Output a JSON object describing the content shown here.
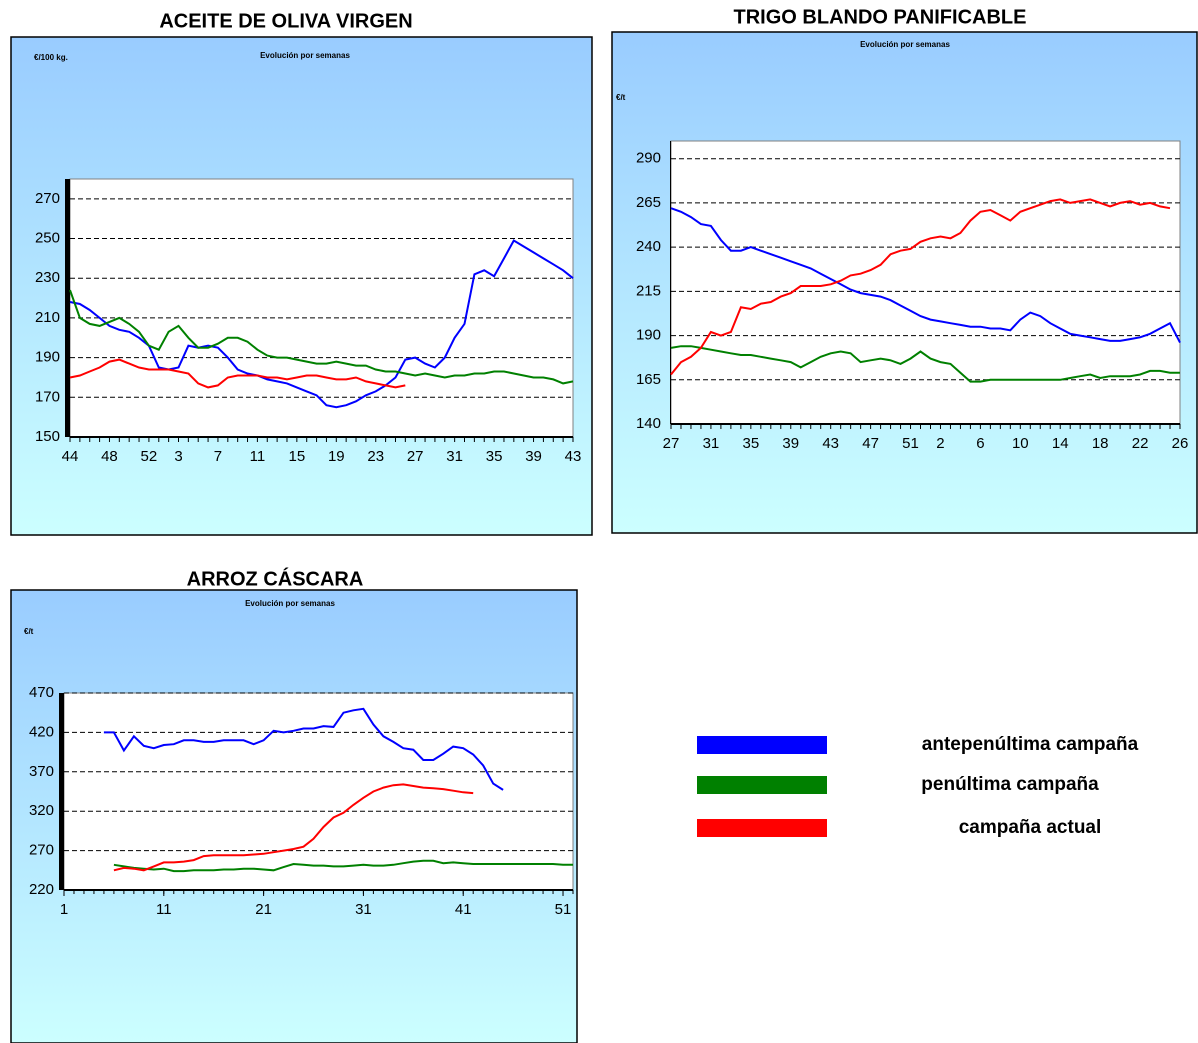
{
  "chart_data": [
    {
      "type": "line",
      "title": "ACEITE DE OLIVA VIRGEN",
      "subtitle": "Evolución por semanas",
      "y_label": "€/100 kg.",
      "categories": [
        "44",
        null,
        null,
        null,
        "48",
        null,
        null,
        null,
        "52",
        null,
        null,
        "3",
        null,
        null,
        null,
        "7",
        null,
        null,
        null,
        "11",
        null,
        null,
        null,
        "15",
        null,
        null,
        null,
        "19",
        null,
        null,
        null,
        "23",
        null,
        null,
        null,
        "27",
        null,
        null,
        null,
        "31",
        null,
        null,
        null,
        "35",
        null,
        null,
        null,
        "39",
        null,
        null,
        null,
        "43"
      ],
      "ylim": [
        150,
        280
      ],
      "yticks": [
        150,
        170,
        190,
        210,
        230,
        250,
        270
      ],
      "grid": true,
      "series": [
        {
          "color": "#0000ff",
          "values": [
            218,
            217,
            214,
            210,
            206,
            204,
            203,
            200,
            196,
            185,
            184,
            185,
            196,
            195,
            196,
            195,
            190,
            184,
            182,
            181,
            179,
            178,
            177,
            175,
            173,
            171,
            166,
            165,
            166,
            168,
            171,
            173,
            176,
            180,
            189,
            190,
            187,
            185,
            190,
            200,
            207,
            232,
            234,
            231,
            240,
            249,
            246,
            243,
            240,
            237,
            234,
            230
          ]
        },
        {
          "color": "#008000",
          "values": [
            224,
            210,
            207,
            206,
            208,
            210,
            207,
            203,
            196,
            194,
            203,
            206,
            200,
            195,
            195,
            197,
            200,
            200,
            198,
            194,
            191,
            190,
            190,
            189,
            188,
            187,
            187,
            188,
            187,
            186,
            186,
            184,
            183,
            183,
            182,
            181,
            182,
            181,
            180,
            181,
            181,
            182,
            182,
            183,
            183,
            182,
            181,
            180,
            180,
            179,
            177,
            178
          ]
        },
        {
          "color": "#ff0000",
          "values": [
            180,
            181,
            183,
            185,
            188,
            189,
            187,
            185,
            184,
            184,
            184,
            183,
            182,
            177,
            175,
            176,
            180,
            181,
            181,
            181,
            180,
            180,
            179,
            180,
            181,
            181,
            180,
            179,
            179,
            180,
            178,
            177,
            176,
            175,
            176,
            null,
            null,
            null,
            null,
            null,
            null,
            null,
            null,
            null,
            null,
            null,
            null,
            null,
            null,
            null,
            null,
            null
          ]
        }
      ]
    },
    {
      "type": "line",
      "title": "TRIGO BLANDO PANIFICABLE",
      "subtitle": "Evolución por semanas",
      "y_label": "€/t",
      "categories": [
        "27",
        null,
        null,
        null,
        "31",
        null,
        null,
        null,
        "35",
        null,
        null,
        null,
        "39",
        null,
        null,
        null,
        "43",
        null,
        null,
        null,
        "47",
        null,
        null,
        null,
        "51",
        null,
        null,
        "2",
        null,
        null,
        null,
        "6",
        null,
        null,
        null,
        "10",
        null,
        null,
        null,
        "14",
        null,
        null,
        null,
        "18",
        null,
        null,
        null,
        "22",
        null,
        null,
        null,
        "26"
      ],
      "ylim": [
        140,
        300
      ],
      "yticks": [
        140,
        165,
        190,
        215,
        240,
        265,
        290
      ],
      "grid": true,
      "series": [
        {
          "color": "#0000ff",
          "values": [
            262,
            260,
            257,
            253,
            252,
            244,
            238,
            238,
            240,
            238,
            236,
            234,
            232,
            230,
            228,
            225,
            222,
            219,
            216,
            214,
            213,
            212,
            210,
            207,
            204,
            201,
            199,
            198,
            197,
            196,
            195,
            195,
            194,
            194,
            193,
            199,
            203,
            201,
            197,
            194,
            191,
            190,
            189,
            188,
            187,
            187,
            188,
            189,
            191,
            194,
            197,
            186
          ]
        },
        {
          "color": "#008000",
          "values": [
            183,
            184,
            184,
            183,
            182,
            181,
            180,
            179,
            179,
            178,
            177,
            176,
            175,
            172,
            175,
            178,
            180,
            181,
            180,
            175,
            176,
            177,
            176,
            174,
            177,
            181,
            177,
            175,
            174,
            169,
            164,
            164,
            165,
            165,
            165,
            165,
            165,
            165,
            165,
            165,
            166,
            167,
            168,
            166,
            167,
            167,
            167,
            168,
            170,
            170,
            169,
            169
          ]
        },
        {
          "color": "#ff0000",
          "values": [
            168,
            175,
            178,
            183,
            192,
            190,
            192,
            206,
            205,
            208,
            209,
            212,
            214,
            218,
            218,
            218,
            219,
            221,
            224,
            225,
            227,
            230,
            236,
            238,
            239,
            243,
            245,
            246,
            245,
            248,
            255,
            260,
            261,
            258,
            255,
            260,
            262,
            264,
            266,
            267,
            265,
            266,
            267,
            265,
            263,
            265,
            266,
            264,
            265,
            263,
            262,
            null
          ]
        }
      ]
    },
    {
      "type": "line",
      "title": "ARROZ CÁSCARA",
      "subtitle": "Evolución por semanas",
      "y_label": "€/t",
      "x": [
        1,
        2,
        3,
        4,
        5,
        6,
        7,
        8,
        9,
        10,
        11,
        12,
        13,
        14,
        15,
        16,
        17,
        18,
        19,
        20,
        21,
        22,
        23,
        24,
        25,
        26,
        27,
        28,
        29,
        30,
        31,
        32,
        33,
        34,
        35,
        36,
        37,
        38,
        39,
        40,
        41,
        42,
        43,
        44,
        45,
        46,
        47,
        48,
        49,
        50,
        51,
        52
      ],
      "xlim": [
        1,
        52
      ],
      "xticks": [
        1,
        11,
        21,
        31,
        41,
        51
      ],
      "ylim": [
        220,
        470
      ],
      "yticks": [
        220,
        270,
        320,
        370,
        420,
        470
      ],
      "grid": true,
      "series": [
        {
          "color": "#0000ff",
          "values": [
            null,
            null,
            null,
            null,
            420,
            420,
            397,
            415,
            403,
            400,
            404,
            405,
            410,
            410,
            408,
            408,
            410,
            410,
            410,
            405,
            410,
            422,
            420,
            422,
            425,
            425,
            428,
            427,
            445,
            448,
            450,
            430,
            415,
            408,
            400,
            398,
            385,
            385,
            393,
            402,
            400,
            392,
            378,
            355,
            347,
            null,
            null,
            null,
            null,
            null,
            null,
            null
          ]
        },
        {
          "color": "#008000",
          "values": [
            null,
            null,
            null,
            null,
            null,
            252,
            250,
            248,
            247,
            246,
            247,
            244,
            244,
            245,
            245,
            245,
            246,
            246,
            247,
            247,
            246,
            245,
            249,
            253,
            252,
            251,
            251,
            250,
            250,
            251,
            252,
            251,
            251,
            252,
            254,
            256,
            257,
            257,
            254,
            255,
            254,
            253,
            253,
            253,
            253,
            253,
            253,
            253,
            253,
            253,
            252,
            252
          ]
        },
        {
          "color": "#ff0000",
          "values": [
            null,
            null,
            null,
            null,
            null,
            245,
            248,
            247,
            245,
            250,
            255,
            255,
            256,
            258,
            263,
            264,
            264,
            264,
            264,
            265,
            266,
            268,
            270,
            272,
            275,
            285,
            300,
            312,
            318,
            328,
            337,
            345,
            350,
            353,
            354,
            352,
            350,
            349,
            348,
            346,
            344,
            343,
            null,
            null,
            null,
            null,
            null,
            null,
            null,
            null,
            null,
            null
          ]
        }
      ]
    }
  ],
  "legend": [
    {
      "name": "antepenúltima campaña",
      "color": "#0000ff"
    },
    {
      "name": "penúltima campaña",
      "color": "#008000"
    },
    {
      "name": "campaña actual",
      "color": "#ff0000"
    }
  ]
}
